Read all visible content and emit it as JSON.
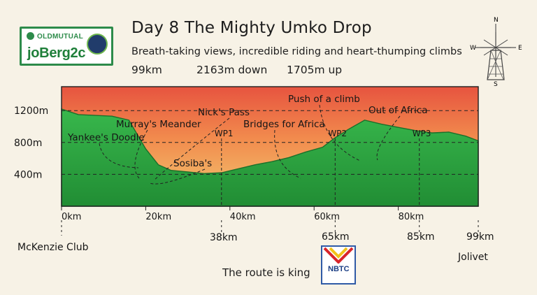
{
  "branding": {
    "sponsor_name": "OLDMUTUAL",
    "event_name": "joBerg2c",
    "route_logo_name": "NBTC"
  },
  "header": {
    "title": "Day 8  The Mighty Umko Drop",
    "subtitle": "Breath-taking views, incredible riding and heart-thumping climbs",
    "stats": {
      "distance": "99km",
      "descent": "2163m down",
      "climb": "1705m up"
    }
  },
  "compass": {
    "north": "N",
    "east": "E",
    "south": "S",
    "west": "W"
  },
  "footer": {
    "tagline": "The route is king"
  },
  "chart_data": {
    "type": "area",
    "title": "Day 8  The Mighty Umko Drop",
    "xlabel": "",
    "ylabel": "",
    "xlim": [
      0,
      99
    ],
    "ylim": [
      0,
      1500
    ],
    "grid": true,
    "y_ticks": [
      {
        "value": 400,
        "label": "400m"
      },
      {
        "value": 800,
        "label": "800m"
      },
      {
        "value": 1200,
        "label": "1200m"
      }
    ],
    "x_ticks": [
      {
        "value": 0,
        "label": "0km"
      },
      {
        "value": 20,
        "label": "20km"
      },
      {
        "value": 40,
        "label": "40km"
      },
      {
        "value": 60,
        "label": "60km"
      },
      {
        "value": 80,
        "label": "80km"
      }
    ],
    "elevation_profile": {
      "x": [
        0,
        4,
        8,
        12,
        16,
        20,
        23,
        26,
        30,
        34,
        38,
        42,
        46,
        50,
        54,
        58,
        62,
        65,
        68,
        72,
        76,
        80,
        84,
        88,
        92,
        96,
        99
      ],
      "y": [
        1220,
        1150,
        1140,
        1130,
        1080,
        720,
        520,
        450,
        430,
        410,
        420,
        470,
        520,
        560,
        610,
        680,
        740,
        860,
        960,
        1080,
        1030,
        990,
        950,
        920,
        930,
        880,
        820
      ]
    },
    "point_labels": [
      {
        "x": 0,
        "label": "McKenzie Club"
      },
      {
        "x": 38,
        "label": "38km"
      },
      {
        "x": 65,
        "label": "65km"
      },
      {
        "x": 85,
        "label": "85km"
      },
      {
        "x": 99,
        "label": "99km"
      },
      {
        "x": 99,
        "label": "Jolivet"
      }
    ],
    "waypoints": [
      {
        "x": 38,
        "label": "WP1"
      },
      {
        "x": 65,
        "label": "WP2"
      },
      {
        "x": 85,
        "label": "WP3"
      }
    ],
    "annotations": [
      {
        "x": 18,
        "label": "Yankee's Doodle"
      },
      {
        "x": 22,
        "label": "Murray's Meander"
      },
      {
        "x": 21,
        "label": "Nick's Pass"
      },
      {
        "x": 21,
        "label": "Sosiba's"
      },
      {
        "x": 58,
        "label": "Bridges for Africa"
      },
      {
        "x": 72,
        "label": "Push of a climb"
      },
      {
        "x": 75,
        "label": "Out of Africa"
      }
    ]
  }
}
